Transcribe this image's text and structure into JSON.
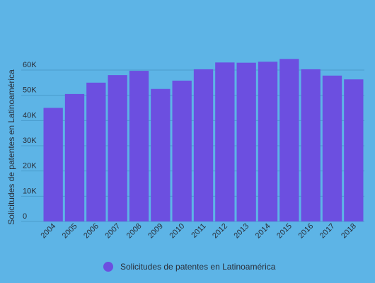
{
  "chart_data": {
    "type": "bar",
    "title": "",
    "xlabel": "",
    "ylabel": "Solicitudes de patentes en Latinoamérica",
    "categories": [
      "2004",
      "2005",
      "2006",
      "2007",
      "2008",
      "2009",
      "2010",
      "2011",
      "2012",
      "2013",
      "2014",
      "2015",
      "2016",
      "2017",
      "2018"
    ],
    "series": [
      {
        "name": "Solicitudes de patentes en Latinoamérica",
        "color": "#6c4fe0",
        "values": [
          45000,
          50500,
          55000,
          58000,
          59700,
          52500,
          55800,
          60300,
          63000,
          62900,
          63300,
          64400,
          60300,
          57800,
          56300
        ]
      }
    ],
    "ylim": [
      0,
      60000
    ],
    "yticks": [
      0,
      10000,
      20000,
      30000,
      40000,
      50000,
      60000
    ],
    "ytick_labels": [
      "0",
      "10K",
      "20K",
      "30K",
      "40K",
      "50K",
      "60K"
    ],
    "grid": true,
    "legend_position": "bottom"
  },
  "colors": {
    "background": "#5db4e6",
    "bar": "#6c4fe0",
    "grid": "#4a9ccc"
  }
}
